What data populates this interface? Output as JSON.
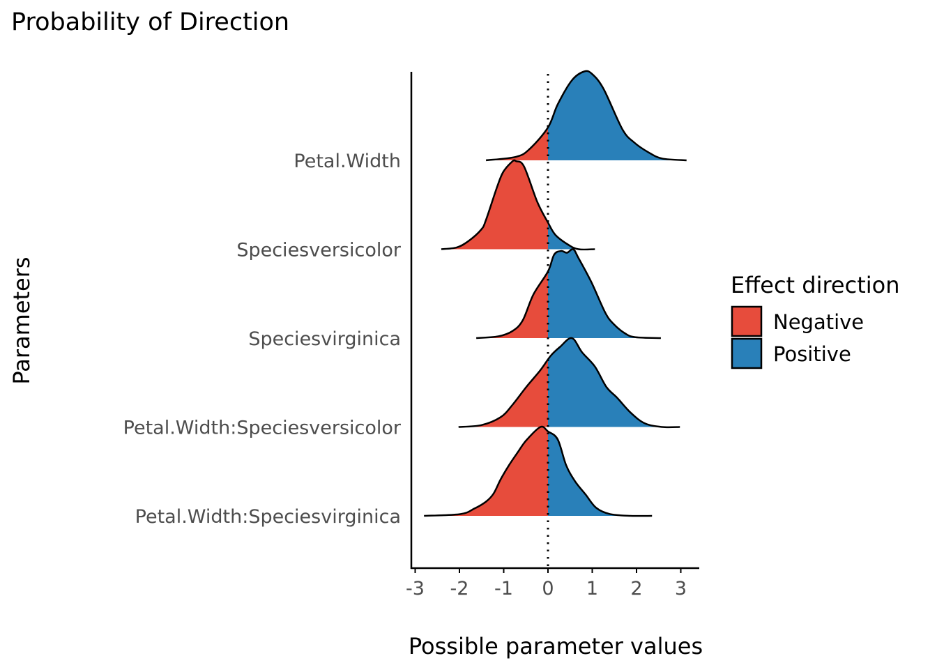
{
  "chart_data": {
    "type": "area",
    "subtype": "ridgeline-density",
    "title": "Probability of Direction",
    "xlabel": "Possible parameter values",
    "ylabel": "Parameters",
    "xlim": [
      -3.05,
      3.4
    ],
    "x_ticks": [
      -3,
      -2,
      -1,
      0,
      1,
      2,
      3
    ],
    "x_tick_labels": [
      "-3",
      "-2",
      "-1",
      "0",
      "1",
      "2",
      "3"
    ],
    "reference_line": 0,
    "grid": false,
    "legend": {
      "title": "Effect direction",
      "position": "right",
      "entries": [
        {
          "label": "Negative",
          "color": "#E74C3C"
        },
        {
          "label": "Positive",
          "color": "#2980B9"
        }
      ]
    },
    "height_note": "densities scaled so the tallest ridge peak = 1 row spacing",
    "series": [
      {
        "name": "Petal.Width",
        "points": [
          [
            -1.4,
            0
          ],
          [
            -0.72,
            0.04
          ],
          [
            -0.41,
            0.13
          ],
          [
            0,
            0.37
          ],
          [
            0.22,
            0.63
          ],
          [
            0.54,
            0.9
          ],
          [
            0.82,
            1.0
          ],
          [
            1.0,
            0.97
          ],
          [
            1.26,
            0.8
          ],
          [
            1.68,
            0.35
          ],
          [
            1.95,
            0.2
          ],
          [
            2.27,
            0.09
          ],
          [
            2.58,
            0.02
          ],
          [
            3.13,
            0
          ]
        ]
      },
      {
        "name": "Speciesversicolor",
        "points": [
          [
            -2.41,
            0
          ],
          [
            -2.06,
            0.02
          ],
          [
            -1.8,
            0.09
          ],
          [
            -1.51,
            0.22
          ],
          [
            -1.4,
            0.33
          ],
          [
            -1.15,
            0.7
          ],
          [
            -1.01,
            0.87
          ],
          [
            -0.8,
            0.99
          ],
          [
            -0.72,
            0.99
          ],
          [
            -0.54,
            0.93
          ],
          [
            -0.24,
            0.53
          ],
          [
            0,
            0.3
          ],
          [
            0.17,
            0.16
          ],
          [
            0.46,
            0.05
          ],
          [
            0.69,
            0.0
          ],
          [
            1.06,
            0
          ]
        ]
      },
      {
        "name": "Speciesvirginica",
        "points": [
          [
            -1.62,
            0
          ],
          [
            -1.12,
            0.02
          ],
          [
            -0.8,
            0.08
          ],
          [
            -0.57,
            0.2
          ],
          [
            -0.33,
            0.49
          ],
          [
            0,
            0.75
          ],
          [
            0.14,
            0.94
          ],
          [
            0.3,
            0.98
          ],
          [
            0.43,
            0.96
          ],
          [
            0.57,
            1.0
          ],
          [
            0.69,
            0.9
          ],
          [
            0.98,
            0.63
          ],
          [
            1.29,
            0.29
          ],
          [
            1.48,
            0.16
          ],
          [
            1.75,
            0.05
          ],
          [
            1.98,
            0.01
          ],
          [
            2.55,
            0
          ]
        ]
      },
      {
        "name": "Petal.Width:Speciesversicolor",
        "points": [
          [
            -2.02,
            0
          ],
          [
            -1.51,
            0.02
          ],
          [
            -1.07,
            0.11
          ],
          [
            -0.8,
            0.25
          ],
          [
            -0.49,
            0.45
          ],
          [
            -0.17,
            0.64
          ],
          [
            0.06,
            0.8
          ],
          [
            0.27,
            0.9
          ],
          [
            0.54,
            1.0
          ],
          [
            0.77,
            0.84
          ],
          [
            1.06,
            0.68
          ],
          [
            1.32,
            0.45
          ],
          [
            1.56,
            0.33
          ],
          [
            1.87,
            0.16
          ],
          [
            2.19,
            0.04
          ],
          [
            2.58,
            0
          ],
          [
            2.98,
            0
          ]
        ]
      },
      {
        "name": "Petal.Width:Speciesvirginica",
        "points": [
          [
            -2.8,
            0
          ],
          [
            -1.98,
            0.02
          ],
          [
            -1.67,
            0.08
          ],
          [
            -1.4,
            0.16
          ],
          [
            -1.23,
            0.25
          ],
          [
            -1.07,
            0.41
          ],
          [
            -0.88,
            0.57
          ],
          [
            -0.69,
            0.71
          ],
          [
            -0.49,
            0.85
          ],
          [
            -0.17,
            1.0
          ],
          [
            0,
            0.95
          ],
          [
            0.22,
            0.86
          ],
          [
            0.41,
            0.57
          ],
          [
            0.61,
            0.39
          ],
          [
            0.85,
            0.24
          ],
          [
            1.09,
            0.09
          ],
          [
            1.4,
            0.02
          ],
          [
            1.87,
            0
          ],
          [
            2.35,
            0
          ]
        ]
      }
    ]
  }
}
